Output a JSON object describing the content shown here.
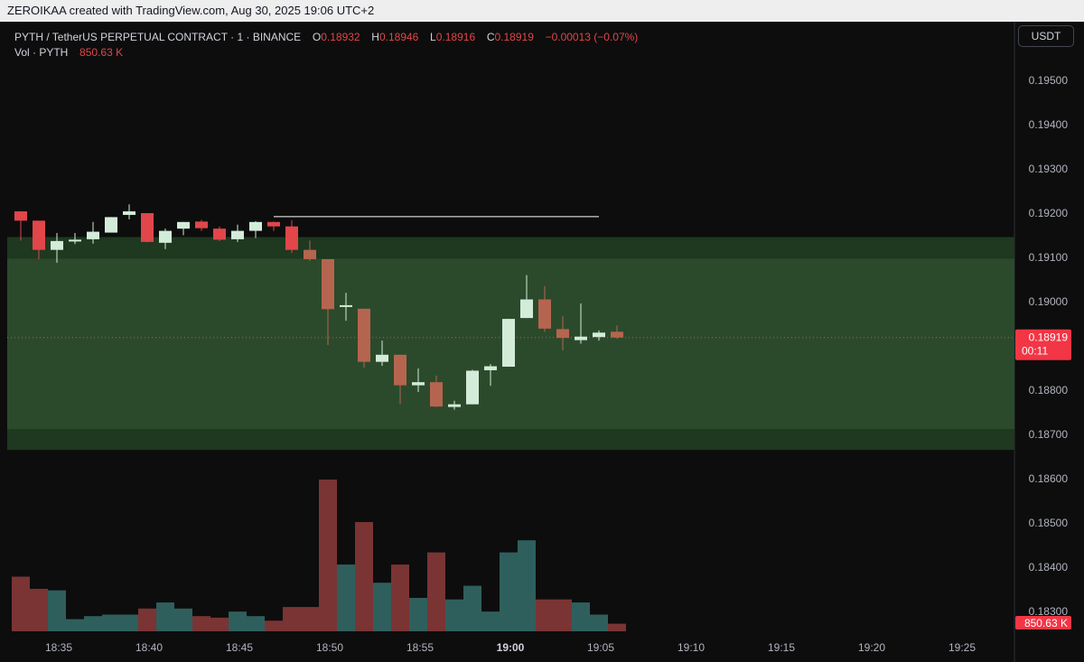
{
  "header": {
    "credit": "ZEROIKAA created with TradingView.com, Aug 30, 2025 19:06 UTC+2"
  },
  "legend": {
    "symbol": "PYTH / TetherUS PERPETUAL CONTRACT · 1 · BINANCE",
    "o_label": "O",
    "o_value": "0.18932",
    "h_label": "H",
    "h_value": "0.18946",
    "l_label": "L",
    "l_value": "0.18916",
    "c_label": "C",
    "c_value": "0.18919",
    "change": "−0.00013 (−0.07%)",
    "vol_label": "Vol · PYTH",
    "vol_value": "850.63 K"
  },
  "currency_button": "USDT",
  "colors": {
    "up_candle": "#d3ecd9",
    "down_candle": "#b5654f",
    "down_candle_early": "#e0464a",
    "up_volume": "#2f5f5c",
    "down_volume": "#7a3434",
    "zone_fill": "#2b4a2b",
    "zone_band": "#1f3820",
    "price_tag": "#f23645",
    "resistance_line": "#ffffff"
  },
  "chart_data": {
    "type": "candlestick",
    "title": "PYTH / TetherUS PERPETUAL CONTRACT · 1 · BINANCE",
    "y_axis": {
      "ticks": [
        0.195,
        0.194,
        0.193,
        0.192,
        0.191,
        0.19,
        0.189,
        0.188,
        0.187,
        0.186,
        0.185,
        0.184,
        0.183
      ],
      "tick_labels": [
        "0.19500",
        "0.19400",
        "0.19300",
        "0.19200",
        "0.19100",
        "0.19000",
        "0.18900",
        "0.18800",
        "0.18700",
        "0.18600",
        "0.18500",
        "0.18400",
        "0.18300"
      ],
      "ylim": [
        0.1828,
        0.1958
      ]
    },
    "x_axis": {
      "tick_labels": [
        "18:35",
        "18:40",
        "18:45",
        "18:50",
        "18:55",
        "19:00",
        "19:05",
        "19:10",
        "19:15",
        "19:20",
        "19:25"
      ],
      "bold_tick": "19:00",
      "first_tick_minute": 35,
      "first_tick_hour": 18
    },
    "candles": [
      {
        "time": "18:35",
        "o": 0.19204,
        "h": 0.19204,
        "l": 0.19138,
        "c": 0.19183
      },
      {
        "time": "18:36",
        "o": 0.19183,
        "h": 0.19183,
        "l": 0.19096,
        "c": 0.19117
      },
      {
        "time": "18:37",
        "o": 0.19117,
        "h": 0.19155,
        "l": 0.19088,
        "c": 0.19137
      },
      {
        "time": "18:38",
        "o": 0.19137,
        "h": 0.19155,
        "l": 0.1913,
        "c": 0.1914
      },
      {
        "time": "18:39",
        "o": 0.19141,
        "h": 0.1918,
        "l": 0.19131,
        "c": 0.19158
      },
      {
        "time": "18:40",
        "o": 0.19156,
        "h": 0.19191,
        "l": 0.19156,
        "c": 0.19191
      },
      {
        "time": "18:41",
        "o": 0.19196,
        "h": 0.1922,
        "l": 0.19186,
        "c": 0.19204
      },
      {
        "time": "18:42",
        "o": 0.192,
        "h": 0.192,
        "l": 0.19134,
        "c": 0.19135
      },
      {
        "time": "18:43",
        "o": 0.19133,
        "h": 0.19165,
        "l": 0.19119,
        "c": 0.1916
      },
      {
        "time": "18:44",
        "o": 0.19165,
        "h": 0.1918,
        "l": 0.1915,
        "c": 0.1918
      },
      {
        "time": "18:45",
        "o": 0.19181,
        "h": 0.19185,
        "l": 0.1916,
        "c": 0.19166
      },
      {
        "time": "18:46",
        "o": 0.19165,
        "h": 0.1917,
        "l": 0.19137,
        "c": 0.1914
      },
      {
        "time": "18:47",
        "o": 0.19141,
        "h": 0.19174,
        "l": 0.19135,
        "c": 0.1916
      },
      {
        "time": "18:48",
        "o": 0.1916,
        "h": 0.19182,
        "l": 0.19144,
        "c": 0.1918
      },
      {
        "time": "18:49",
        "o": 0.1918,
        "h": 0.19181,
        "l": 0.1916,
        "c": 0.1917
      },
      {
        "time": "18:50",
        "o": 0.1917,
        "h": 0.19184,
        "l": 0.1911,
        "c": 0.19117
      },
      {
        "time": "18:51",
        "o": 0.19117,
        "h": 0.19138,
        "l": 0.19092,
        "c": 0.19096
      },
      {
        "time": "18:52",
        "o": 0.19096,
        "h": 0.19096,
        "l": 0.18902,
        "c": 0.18983
      },
      {
        "time": "18:53",
        "o": 0.18992,
        "h": 0.1902,
        "l": 0.18957,
        "c": 0.18992
      },
      {
        "time": "18:54",
        "o": 0.18984,
        "h": 0.18984,
        "l": 0.18851,
        "c": 0.18864
      },
      {
        "time": "18:55",
        "o": 0.18864,
        "h": 0.18912,
        "l": 0.18855,
        "c": 0.1888
      },
      {
        "time": "18:56",
        "o": 0.1888,
        "h": 0.1888,
        "l": 0.18769,
        "c": 0.18811
      },
      {
        "time": "18:57",
        "o": 0.18811,
        "h": 0.18849,
        "l": 0.18796,
        "c": 0.18818
      },
      {
        "time": "18:58",
        "o": 0.18818,
        "h": 0.18833,
        "l": 0.18762,
        "c": 0.18763
      },
      {
        "time": "18:59",
        "o": 0.18762,
        "h": 0.18776,
        "l": 0.18756,
        "c": 0.18768
      },
      {
        "time": "19:00",
        "o": 0.18768,
        "h": 0.18846,
        "l": 0.18768,
        "c": 0.18844
      },
      {
        "time": "19:01",
        "o": 0.18845,
        "h": 0.18859,
        "l": 0.1881,
        "c": 0.18854
      },
      {
        "time": "19:02",
        "o": 0.18853,
        "h": 0.18961,
        "l": 0.18853,
        "c": 0.18961
      },
      {
        "time": "19:03",
        "o": 0.18963,
        "h": 0.1906,
        "l": 0.18963,
        "c": 0.19005
      },
      {
        "time": "19:04",
        "o": 0.19005,
        "h": 0.19035,
        "l": 0.18932,
        "c": 0.18939
      },
      {
        "time": "19:05",
        "o": 0.18938,
        "h": 0.18967,
        "l": 0.1889,
        "c": 0.18918
      },
      {
        "time": "19:06",
        "o": 0.18913,
        "h": 0.18996,
        "l": 0.18905,
        "c": 0.18921
      },
      {
        "time": "19:07",
        "o": 0.1892,
        "h": 0.18935,
        "l": 0.18912,
        "c": 0.1893
      },
      {
        "time": "19:08",
        "o": 0.18932,
        "h": 0.18946,
        "l": 0.18916,
        "c": 0.18919
      }
    ],
    "volume_relative": [
      0.36,
      0.28,
      0.27,
      0.08,
      0.1,
      0.11,
      0.11,
      0.15,
      0.19,
      0.15,
      0.1,
      0.09,
      0.13,
      0.1,
      0.07,
      0.16,
      0.16,
      1.0,
      0.44,
      0.72,
      0.32,
      0.44,
      0.22,
      0.52,
      0.21,
      0.3,
      0.13,
      0.52,
      0.6,
      0.21,
      0.21,
      0.19,
      0.11,
      0.05
    ],
    "zone": {
      "top": 0.19146,
      "bottom": 0.18665,
      "inner_top": 0.19097,
      "inner_bottom": 0.18712
    },
    "resistance_line": {
      "price": 0.19192,
      "from": "18:49",
      "to": "19:07"
    },
    "last_price": {
      "price": 0.18919,
      "label": "0.18919",
      "countdown": "00:11"
    },
    "last_volume_label": "850.63 K"
  }
}
